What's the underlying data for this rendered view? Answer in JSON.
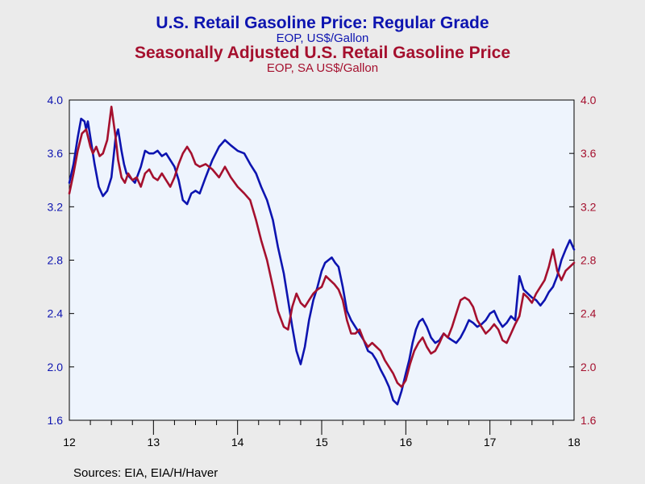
{
  "titles": {
    "title1": "U.S. Retail Gasoline Price: Regular Grade",
    "subtitle1": "EOP, US$/Gallon",
    "title2": "Seasonally Adjusted U.S. Retail Gasoline Price",
    "subtitle2": "EOP, SA US$/Gallon"
  },
  "source": "Sources:  EIA, EIA/H/Haver",
  "colors": {
    "series1": "#0d14b0",
    "series2": "#a5102e",
    "plot_bg": "#eef4fd",
    "page_bg": "#ebebeb"
  },
  "chart_data": {
    "type": "line",
    "x_tick_labels": [
      "12",
      "13",
      "14",
      "15",
      "16",
      "17",
      "18"
    ],
    "x_range": [
      2012.0,
      2018.0
    ],
    "y_left_range": [
      1.6,
      4.0
    ],
    "y_right_range": [
      1.6,
      4.0
    ],
    "y_tick_labels": [
      "4.0",
      "3.6",
      "3.2",
      "2.8",
      "2.4",
      "2.0",
      "1.6"
    ],
    "grid": false,
    "series": [
      {
        "name": "U.S. Retail Gasoline Price: Regular Grade",
        "axis": "left",
        "x": [
          2012.0,
          2012.05,
          2012.1,
          2012.14,
          2012.18,
          2012.2,
          2012.22,
          2012.25,
          2012.3,
          2012.35,
          2012.4,
          2012.45,
          2012.5,
          2012.55,
          2012.58,
          2012.62,
          2012.65,
          2012.68,
          2012.72,
          2012.78,
          2012.85,
          2012.9,
          2012.95,
          2013.0,
          2013.05,
          2013.1,
          2013.15,
          2013.2,
          2013.25,
          2013.3,
          2013.35,
          2013.4,
          2013.45,
          2013.5,
          2013.55,
          2013.62,
          2013.7,
          2013.78,
          2013.85,
          2013.92,
          2014.0,
          2014.08,
          2014.15,
          2014.22,
          2014.28,
          2014.35,
          2014.42,
          2014.48,
          2014.55,
          2014.6,
          2014.65,
          2014.7,
          2014.75,
          2014.8,
          2014.85,
          2014.9,
          2014.95,
          2015.0,
          2015.04,
          2015.08,
          2015.12,
          2015.16,
          2015.2,
          2015.25,
          2015.3,
          2015.35,
          2015.4,
          2015.45,
          2015.5,
          2015.55,
          2015.6,
          2015.65,
          2015.7,
          2015.75,
          2015.8,
          2015.85,
          2015.9,
          2015.95,
          2016.0,
          2016.04,
          2016.08,
          2016.12,
          2016.16,
          2016.2,
          2016.25,
          2016.3,
          2016.35,
          2016.4,
          2016.45,
          2016.5,
          2016.55,
          2016.6,
          2016.65,
          2016.7,
          2016.75,
          2016.8,
          2016.85,
          2016.9,
          2016.95,
          2017.0,
          2017.05,
          2017.1,
          2017.15,
          2017.2,
          2017.25,
          2017.3,
          2017.35,
          2017.4,
          2017.45,
          2017.5,
          2017.55,
          2017.6,
          2017.65,
          2017.7,
          2017.75,
          2017.8,
          2017.85,
          2017.9,
          2017.95,
          2018.0
        ],
        "y": [
          3.38,
          3.52,
          3.72,
          3.86,
          3.84,
          3.78,
          3.84,
          3.72,
          3.52,
          3.35,
          3.28,
          3.32,
          3.42,
          3.72,
          3.78,
          3.62,
          3.52,
          3.45,
          3.42,
          3.38,
          3.5,
          3.62,
          3.6,
          3.6,
          3.62,
          3.58,
          3.6,
          3.55,
          3.5,
          3.4,
          3.25,
          3.22,
          3.3,
          3.32,
          3.3,
          3.42,
          3.55,
          3.65,
          3.7,
          3.66,
          3.62,
          3.6,
          3.52,
          3.45,
          3.35,
          3.25,
          3.1,
          2.9,
          2.7,
          2.5,
          2.3,
          2.12,
          2.02,
          2.15,
          2.35,
          2.5,
          2.6,
          2.72,
          2.78,
          2.8,
          2.82,
          2.78,
          2.75,
          2.6,
          2.42,
          2.35,
          2.3,
          2.25,
          2.2,
          2.12,
          2.1,
          2.05,
          1.98,
          1.92,
          1.85,
          1.75,
          1.72,
          1.82,
          1.95,
          2.05,
          2.18,
          2.28,
          2.34,
          2.36,
          2.3,
          2.22,
          2.18,
          2.2,
          2.25,
          2.22,
          2.2,
          2.18,
          2.22,
          2.28,
          2.35,
          2.33,
          2.3,
          2.32,
          2.35,
          2.4,
          2.42,
          2.35,
          2.3,
          2.33,
          2.38,
          2.35,
          2.68,
          2.58,
          2.55,
          2.52,
          2.5,
          2.46,
          2.5,
          2.56,
          2.6,
          2.68,
          2.8,
          2.88,
          2.95,
          2.88
        ]
      },
      {
        "name": "Seasonally Adjusted U.S. Retail Gasoline Price",
        "axis": "right",
        "x": [
          2012.0,
          2012.05,
          2012.1,
          2012.15,
          2012.2,
          2012.25,
          2012.28,
          2012.32,
          2012.36,
          2012.4,
          2012.45,
          2012.5,
          2012.55,
          2012.58,
          2012.62,
          2012.66,
          2012.7,
          2012.75,
          2012.8,
          2012.85,
          2012.9,
          2012.95,
          2013.0,
          2013.05,
          2013.1,
          2013.15,
          2013.2,
          2013.25,
          2013.3,
          2013.35,
          2013.4,
          2013.45,
          2013.5,
          2013.55,
          2013.62,
          2013.7,
          2013.78,
          2013.85,
          2013.92,
          2014.0,
          2014.08,
          2014.15,
          2014.22,
          2014.28,
          2014.35,
          2014.42,
          2014.48,
          2014.55,
          2014.6,
          2014.65,
          2014.7,
          2014.75,
          2014.8,
          2014.85,
          2014.9,
          2014.95,
          2015.0,
          2015.05,
          2015.1,
          2015.15,
          2015.2,
          2015.25,
          2015.3,
          2015.35,
          2015.4,
          2015.45,
          2015.5,
          2015.55,
          2015.6,
          2015.65,
          2015.7,
          2015.75,
          2015.8,
          2015.85,
          2015.9,
          2015.95,
          2016.0,
          2016.05,
          2016.1,
          2016.15,
          2016.2,
          2016.25,
          2016.3,
          2016.35,
          2016.4,
          2016.45,
          2016.5,
          2016.55,
          2016.6,
          2016.65,
          2016.7,
          2016.75,
          2016.8,
          2016.85,
          2016.9,
          2016.95,
          2017.0,
          2017.05,
          2017.1,
          2017.15,
          2017.2,
          2017.25,
          2017.3,
          2017.35,
          2017.4,
          2017.45,
          2017.5,
          2017.55,
          2017.6,
          2017.65,
          2017.7,
          2017.75,
          2017.8,
          2017.85,
          2017.9,
          2017.95,
          2018.0
        ],
        "y": [
          3.3,
          3.45,
          3.62,
          3.75,
          3.78,
          3.65,
          3.6,
          3.65,
          3.58,
          3.6,
          3.7,
          3.95,
          3.72,
          3.55,
          3.42,
          3.38,
          3.45,
          3.4,
          3.42,
          3.35,
          3.45,
          3.48,
          3.42,
          3.4,
          3.45,
          3.4,
          3.35,
          3.42,
          3.52,
          3.6,
          3.65,
          3.6,
          3.52,
          3.5,
          3.52,
          3.48,
          3.42,
          3.5,
          3.42,
          3.35,
          3.3,
          3.25,
          3.1,
          2.95,
          2.8,
          2.6,
          2.42,
          2.3,
          2.28,
          2.45,
          2.55,
          2.48,
          2.45,
          2.5,
          2.55,
          2.58,
          2.6,
          2.68,
          2.65,
          2.62,
          2.58,
          2.5,
          2.35,
          2.25,
          2.25,
          2.28,
          2.2,
          2.15,
          2.18,
          2.15,
          2.12,
          2.05,
          2.0,
          1.95,
          1.88,
          1.85,
          1.9,
          2.02,
          2.12,
          2.18,
          2.22,
          2.15,
          2.1,
          2.12,
          2.18,
          2.25,
          2.22,
          2.3,
          2.4,
          2.5,
          2.52,
          2.5,
          2.45,
          2.35,
          2.3,
          2.25,
          2.28,
          2.32,
          2.28,
          2.2,
          2.18,
          2.25,
          2.32,
          2.38,
          2.55,
          2.52,
          2.48,
          2.55,
          2.6,
          2.65,
          2.75,
          2.88,
          2.72,
          2.65,
          2.72,
          2.75,
          2.78
        ]
      }
    ]
  }
}
